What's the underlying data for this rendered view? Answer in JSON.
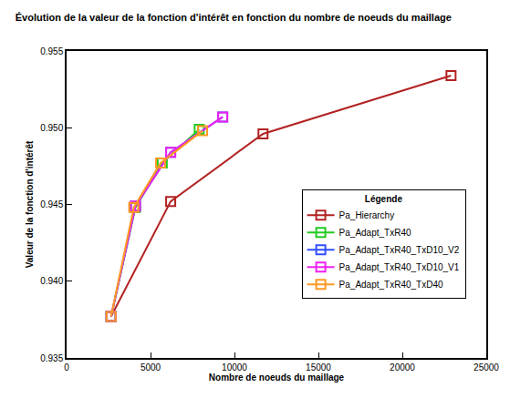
{
  "chart_data": {
    "type": "line",
    "title": "Évolution de la valeur de la fonction d'intérêt en fonction du nombre de noeuds du maillage",
    "x_label": "Nombre de noeuds du maillage",
    "y_label": "Valeur de la fonction d'intérêt",
    "legend_title": "Légende",
    "legend": "right",
    "grid": false,
    "marker": "square-open",
    "line_style": "solid",
    "xlim": [
      0,
      25000
    ],
    "xticks": [
      0,
      5000,
      10000,
      15000,
      20000,
      25000
    ],
    "ylim": [
      0.935,
      0.955
    ],
    "yticks": [
      0.935,
      {
        "value": 0.94,
        "label": "0.940"
      },
      0.945,
      {
        "value": 0.95,
        "label": "0.950"
      },
      0.955
    ],
    "series": [
      {
        "name": "Pa_Hierarchy",
        "color": "#b22222",
        "x": [
          2650,
          6200,
          11700,
          22900
        ],
        "values": [
          0.9377,
          0.9452,
          0.9496,
          0.9534
        ]
      },
      {
        "name": "Pa_Adapt_TxR40",
        "color": "#22cc22",
        "x": [
          2650,
          4100,
          5700,
          7900
        ],
        "values": [
          0.9377,
          0.9448,
          0.9477,
          0.9499
        ]
      },
      {
        "name": "Pa_Adapt_TxR40_TxD10_V2",
        "color": "#3050ff",
        "x": [
          2650,
          4100,
          6200,
          9300
        ],
        "values": [
          0.9377,
          0.9449,
          0.9484,
          0.9507
        ]
      },
      {
        "name": "Pa_Adapt_TxR40_TxD10_V1",
        "color": "#ee22ee",
        "x": [
          2650,
          4100,
          6200,
          9300
        ],
        "values": [
          0.9377,
          0.9449,
          0.9484,
          0.9507
        ]
      },
      {
        "name": "Pa_Adapt_TxR40_TxD40",
        "color": "#ff9922",
        "x": [
          2650,
          4000,
          5600,
          8100
        ],
        "values": [
          0.9377,
          0.9448,
          0.9477,
          0.9498
        ]
      }
    ]
  }
}
